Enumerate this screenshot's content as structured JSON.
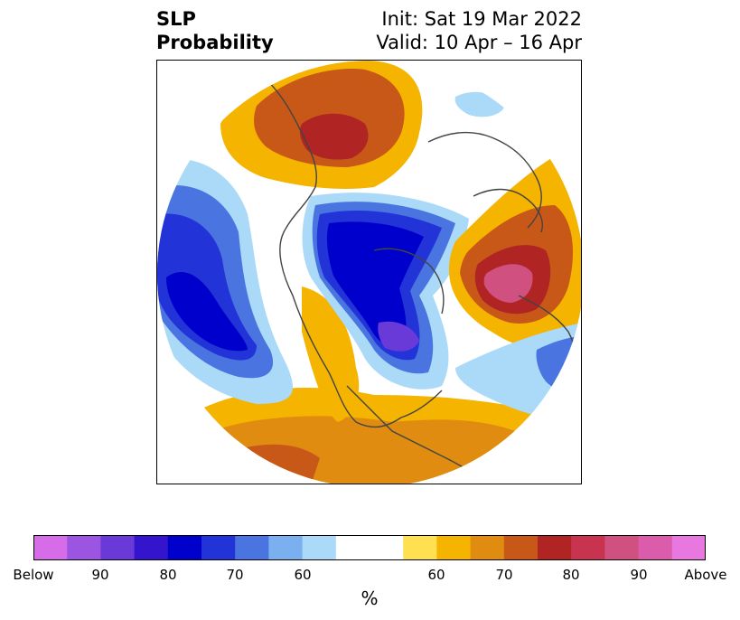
{
  "title": {
    "left_line1": "SLP",
    "left_line2": "Probability",
    "right_line1": "Init: Sat 19 Mar 2022",
    "right_line2": "Valid: 10 Apr – 16 Apr"
  },
  "colorbar": {
    "colors": [
      "#d66ce8",
      "#9b55e0",
      "#6a3ad8",
      "#3414cc",
      "#0000cc",
      "#2233d8",
      "#4a74e0",
      "#7ab0f0",
      "#aadaf8",
      "#ffffff",
      "#ffffff",
      "#ffe050",
      "#f4b400",
      "#e08c10",
      "#c85818",
      "#b02424",
      "#c83450",
      "#d05080",
      "#dc5cac",
      "#e878e0"
    ],
    "tick_labels": [
      "Below",
      "90",
      "80",
      "70",
      "60",
      "60",
      "70",
      "80",
      "90",
      "Above"
    ],
    "unit": "%"
  },
  "map": {
    "projection": "north-polar-stereographic",
    "colors": {
      "ocean_background": "#ffffff",
      "coastline": "#444444",
      "below_dark": "#0000cc",
      "below_mid": "#2233d8",
      "below_light": "#4a74e0",
      "below_pale": "#aadaf8",
      "below_violet": "#6a3ad8",
      "above_yellow": "#ffe050",
      "above_gold": "#f4b400",
      "above_orange": "#e08c10",
      "above_rust": "#c85818",
      "above_red": "#b02424",
      "above_pink": "#d05080"
    }
  }
}
